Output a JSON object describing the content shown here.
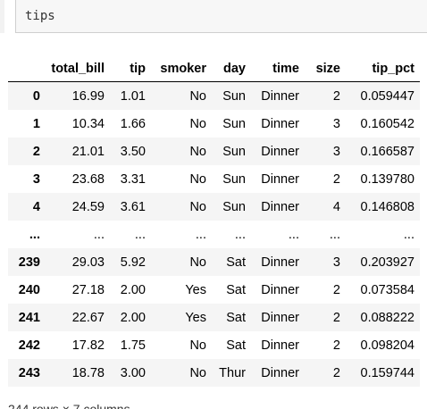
{
  "code_cell": {
    "text": "tips"
  },
  "table": {
    "columns": [
      "",
      "total_bill",
      "tip",
      "smoker",
      "day",
      "time",
      "size",
      "tip_pct"
    ],
    "rows": [
      [
        "0",
        "16.99",
        "1.01",
        "No",
        "Sun",
        "Dinner",
        "2",
        "0.059447"
      ],
      [
        "1",
        "10.34",
        "1.66",
        "No",
        "Sun",
        "Dinner",
        "3",
        "0.160542"
      ],
      [
        "2",
        "21.01",
        "3.50",
        "No",
        "Sun",
        "Dinner",
        "3",
        "0.166587"
      ],
      [
        "3",
        "23.68",
        "3.31",
        "No",
        "Sun",
        "Dinner",
        "2",
        "0.139780"
      ],
      [
        "4",
        "24.59",
        "3.61",
        "No",
        "Sun",
        "Dinner",
        "4",
        "0.146808"
      ],
      [
        "...",
        "...",
        "...",
        "...",
        "...",
        "...",
        "...",
        "..."
      ],
      [
        "239",
        "29.03",
        "5.92",
        "No",
        "Sat",
        "Dinner",
        "3",
        "0.203927"
      ],
      [
        "240",
        "27.18",
        "2.00",
        "Yes",
        "Sat",
        "Dinner",
        "2",
        "0.073584"
      ],
      [
        "241",
        "22.67",
        "2.00",
        "Yes",
        "Sat",
        "Dinner",
        "2",
        "0.088222"
      ],
      [
        "242",
        "17.82",
        "1.75",
        "No",
        "Sat",
        "Dinner",
        "2",
        "0.098204"
      ],
      [
        "243",
        "18.78",
        "3.00",
        "No",
        "Thur",
        "Dinner",
        "2",
        "0.159744"
      ]
    ]
  },
  "footer": {
    "text": "244 rows × 7 columns"
  }
}
